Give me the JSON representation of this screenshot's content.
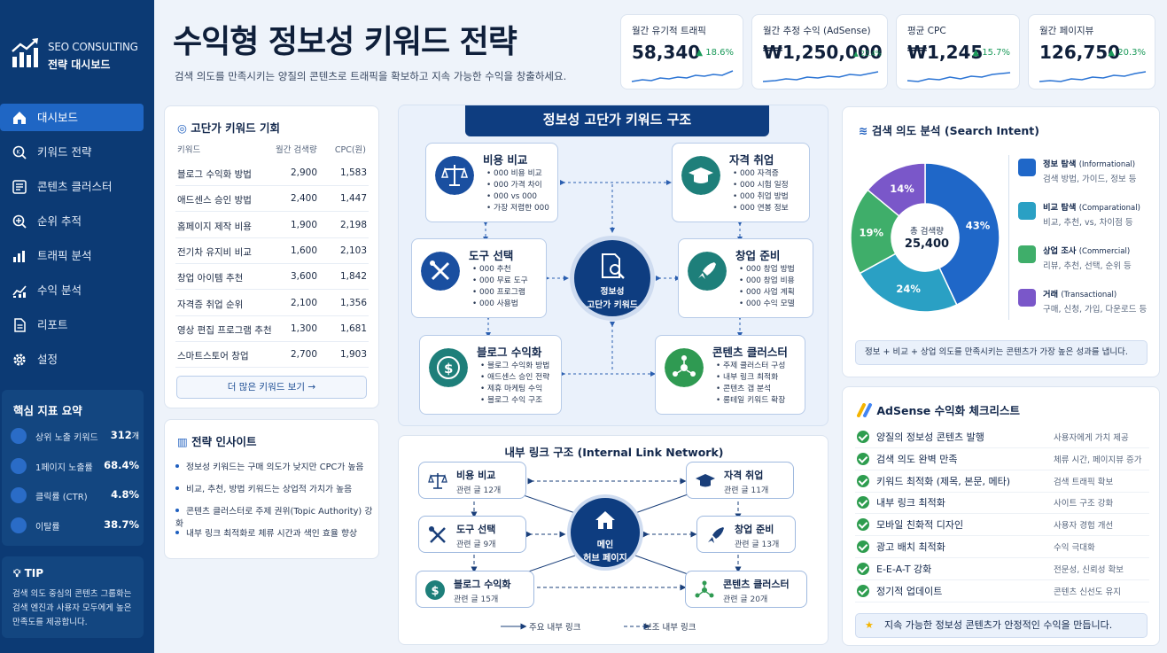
{
  "brand": {
    "line1": "SEO CONSULTING",
    "line2": "전략 대시보드"
  },
  "nav": [
    {
      "label": "대시보드",
      "icon": "home-icon",
      "active": true
    },
    {
      "label": "키워드 전략",
      "icon": "keyword-search-icon"
    },
    {
      "label": "콘텐츠 클러스터",
      "icon": "content-list-icon"
    },
    {
      "label": "순위 추적",
      "icon": "rank-search-icon"
    },
    {
      "label": "트래픽 분석",
      "icon": "bar-chart-icon"
    },
    {
      "label": "수익 분석",
      "icon": "line-chart-icon"
    },
    {
      "label": "리포트",
      "icon": "document-icon"
    },
    {
      "label": "설정",
      "icon": "gear-icon"
    }
  ],
  "kpi_summary": {
    "title": "핵심 지표 요약",
    "rows": [
      {
        "label": "상위 노출 키워드",
        "value": "312",
        "unit": "개"
      },
      {
        "label": "1페이지 노출률",
        "value": "68.4%"
      },
      {
        "label": "클릭률 (CTR)",
        "value": "4.8%"
      },
      {
        "label": "이탈률",
        "value": "38.7%"
      }
    ]
  },
  "tip": {
    "title": "TIP",
    "text": "검색 의도 중심의 콘텐츠 그룹화는 검색 엔진과 사용자 모두에게 높은 만족도를 제공합니다."
  },
  "header": {
    "title": "수익형 정보성 키워드 전략",
    "subtitle": "검색 의도를 만족시키는 양질의 콘텐츠로 트래픽을 확보하고 지속 가능한 수익을 창출하세요."
  },
  "stats": [
    {
      "label": "월간 유기적 트래픽",
      "value": "58,340",
      "delta": "▲ 18.6%"
    },
    {
      "label": "월간 추정 수익 (AdSense)",
      "value": "₩1,250,000",
      "delta": "▲ 22.4%"
    },
    {
      "label": "평균 CPC",
      "value": "₩1,245",
      "delta": "▲ 15.7%"
    },
    {
      "label": "월간 페이지뷰",
      "value": "126,750",
      "delta": "▲ 20.3%"
    }
  ],
  "keywords": {
    "title": "고단가 키워드 기회",
    "headers": [
      "키워드",
      "월간 검색량",
      "CPC(원)"
    ],
    "rows": [
      [
        "블로그 수익화 방법",
        "2,900",
        "1,583"
      ],
      [
        "애드센스 승인 방법",
        "2,400",
        "1,447"
      ],
      [
        "홈페이지 제작 비용",
        "1,900",
        "2,198"
      ],
      [
        "전기차 유지비 비교",
        "1,600",
        "2,103"
      ],
      [
        "창업 아이템 추천",
        "3,600",
        "1,842"
      ],
      [
        "자격증 취업 순위",
        "2,100",
        "1,356"
      ],
      [
        "영상 편집 프로그램 추천",
        "1,300",
        "1,681"
      ],
      [
        "스마트스토어 창업",
        "2,700",
        "1,903"
      ]
    ],
    "more": "더 많은 키워드 보기 →"
  },
  "insights": {
    "title": "전략 인사이트",
    "items": [
      "정보성 키워드는 구매 의도가 낮지만 CPC가 높음",
      "비교, 추천, 방법 키워드는 상업적 가치가 높음",
      "콘텐츠 클러스터로 주제 권위(Topic Authority) 강화",
      "내부 링크 최적화로 체류 시간과 색인 효율 향상"
    ]
  },
  "structure": {
    "title": "정보성 고단가 키워드 구조",
    "hub": [
      "정보성",
      "고단가 키워드"
    ],
    "nodes": [
      {
        "title": "비용 비교",
        "items": [
          "000 비용 비교",
          "000 가격 차이",
          "000 vs 000",
          "가장 저렴한 000"
        ]
      },
      {
        "title": "자격 취업",
        "items": [
          "000 자격증",
          "000 시험 일정",
          "000 취업 방법",
          "000 연봉 정보"
        ]
      },
      {
        "title": "도구 선택",
        "items": [
          "000 추천",
          "000 무료 도구",
          "000 프로그램",
          "000 사용법"
        ]
      },
      {
        "title": "창업 준비",
        "items": [
          "000 창업 방법",
          "000 창업 비용",
          "000 사업 계획",
          "000 수익 모델"
        ]
      },
      {
        "title": "블로그 수익화",
        "items": [
          "블로그 수익화 방법",
          "애드센스 승인 전략",
          "제휴 마케팅 수익",
          "블로그 수익 구조"
        ]
      },
      {
        "title": "콘텐츠 클러스터",
        "items": [
          "주제 클러스터 구성",
          "내부 링크 최적화",
          "콘텐츠 갭 분석",
          "롱테일 키워드 확장"
        ]
      }
    ]
  },
  "link_network": {
    "title": "내부 링크 구조 (Internal Link Network)",
    "hub": [
      "메인",
      "허브 페이지"
    ],
    "nodes": [
      {
        "title": "비용 비교",
        "sub": "관련 글 12개"
      },
      {
        "title": "자격 취업",
        "sub": "관련 글 11개"
      },
      {
        "title": "도구 선택",
        "sub": "관련 글 9개"
      },
      {
        "title": "창업 준비",
        "sub": "관련 글 13개"
      },
      {
        "title": "블로그 수익화",
        "sub": "관련 글 15개"
      },
      {
        "title": "콘텐츠 클러스터",
        "sub": "관련 글 20개"
      }
    ],
    "legend": [
      "주요 내부 링크",
      "보조 내부 링크"
    ]
  },
  "intent": {
    "title": "검색 의도 분석 (Search Intent)",
    "center_label": "총 검색량",
    "center_value": "25,400",
    "legend": [
      {
        "title": "정보 탐색",
        "en": "(Informational)",
        "desc": "검색 방법, 가이드, 정보 등"
      },
      {
        "title": "비교 탐색",
        "en": "(Comparational)",
        "desc": "비교, 추천, vs, 차이점 등"
      },
      {
        "title": "상업 조사",
        "en": "(Commercial)",
        "desc": "리뷰, 추천, 선택, 순위 등"
      },
      {
        "title": "거래",
        "en": "(Transactional)",
        "desc": "구매, 신청, 가입, 다운로드 등"
      }
    ],
    "note": "정보 + 비교 + 상업 의도를 만족시키는 콘텐츠가 가장 높은 성과를 냅니다."
  },
  "chart_data": {
    "type": "pie",
    "categories": [
      "정보 탐색",
      "비교 탐색",
      "상업 조사",
      "거래"
    ],
    "values": [
      43,
      24,
      19,
      14
    ],
    "labels": [
      "43%",
      "24%",
      "19%",
      "14%"
    ],
    "colors": [
      "#1f67c8",
      "#2aa0c4",
      "#3fae6a",
      "#7a57c9"
    ]
  },
  "checklist": {
    "title": "AdSense 수익화 체크리스트",
    "rows": [
      [
        "양질의 정보성 콘텐츠 발행",
        "사용자에게 가치 제공"
      ],
      [
        "검색 의도 완벽 만족",
        "체류 시간, 페이지뷰 증가"
      ],
      [
        "키워드 최적화 (제목, 본문, 메타)",
        "검색 트래픽 확보"
      ],
      [
        "내부 링크 최적화",
        "사이트 구조 강화"
      ],
      [
        "모바일 친화적 디자인",
        "사용자 경험 개선"
      ],
      [
        "광고 배치 최적화",
        "수익 극대화"
      ],
      [
        "E-E-A-T 강화",
        "전문성, 신뢰성 확보"
      ],
      [
        "정기적 업데이트",
        "콘텐츠 신선도 유지"
      ]
    ],
    "note": "지속 가능한 정보성 콘텐츠가 안정적인 수익을 만듭니다."
  }
}
